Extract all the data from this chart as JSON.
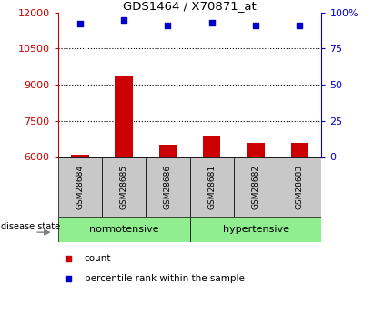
{
  "title": "GDS1464 / X70871_at",
  "samples": [
    "GSM28684",
    "GSM28685",
    "GSM28686",
    "GSM28681",
    "GSM28682",
    "GSM28683"
  ],
  "counts": [
    6100,
    9400,
    6500,
    6900,
    6600,
    6600
  ],
  "percentile_ranks": [
    92,
    95,
    91,
    93,
    91,
    91
  ],
  "bar_color": "#cc0000",
  "marker_color": "#0000cc",
  "ylim_left": [
    6000,
    12000
  ],
  "ylim_right": [
    0,
    100
  ],
  "yticks_left": [
    6000,
    7500,
    9000,
    10500,
    12000
  ],
  "yticks_right": [
    0,
    25,
    50,
    75,
    100
  ],
  "ytick_labels_left": [
    "6000",
    "7500",
    "9000",
    "10500",
    "12000"
  ],
  "ytick_labels_right": [
    "0",
    "25",
    "50",
    "75",
    "100%"
  ],
  "group_label_normotensive": "normotensive",
  "group_label_hypertensive": "hypertensive",
  "disease_state_label": "disease state",
  "legend_count": "count",
  "legend_percentile": "percentile rank within the sample",
  "bar_baseline": 6000,
  "left_tick_color": "#cc0000",
  "right_tick_color": "#0000cc",
  "gray_box_color": "#c8c8c8",
  "green_box_color": "#90ee90"
}
